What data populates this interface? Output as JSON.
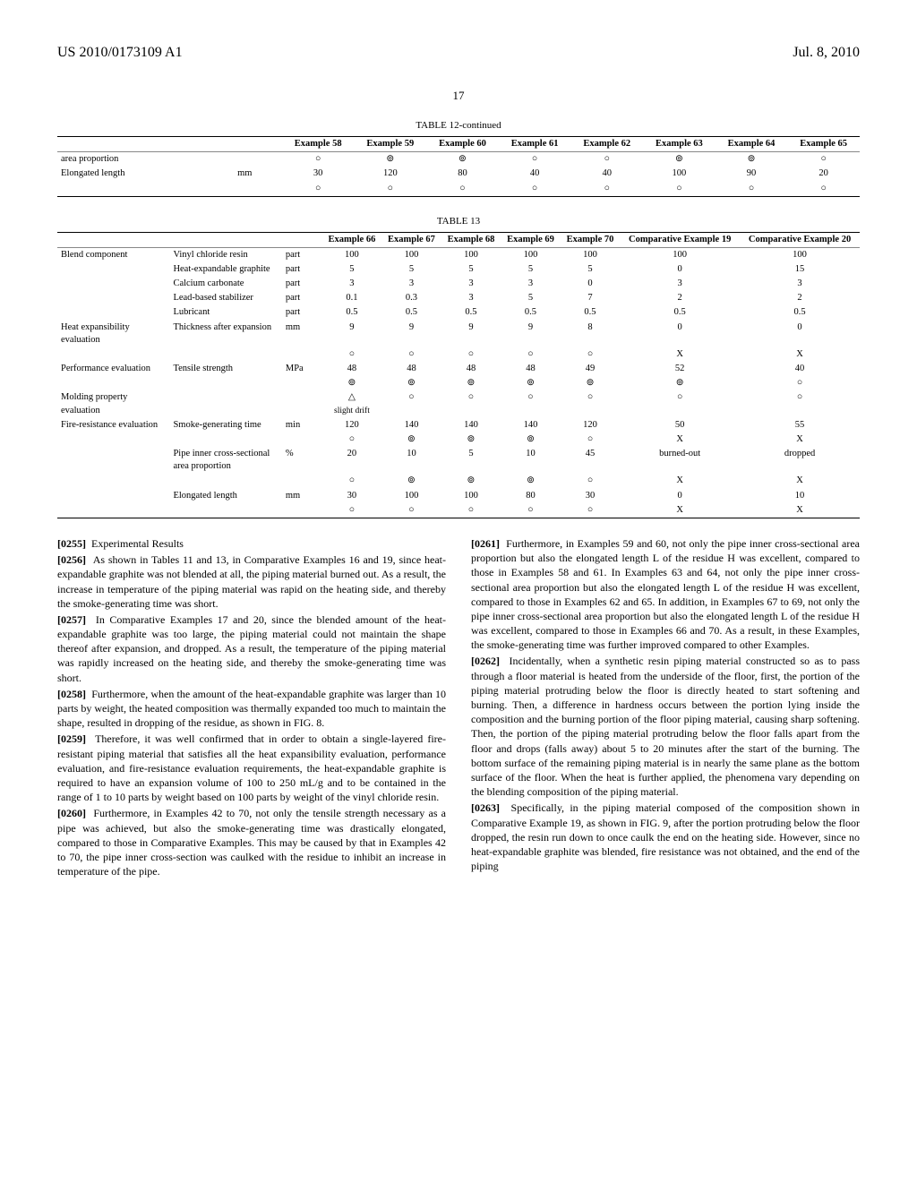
{
  "header": {
    "pub_number": "US 2010/0173109 A1",
    "pub_date": "Jul. 8, 2010",
    "page_number": "17"
  },
  "table12": {
    "title": "TABLE 12-continued",
    "columns": [
      "Example 58",
      "Example 59",
      "Example 60",
      "Example 61",
      "Example 62",
      "Example 63",
      "Example 64",
      "Example 65"
    ],
    "rows": [
      {
        "label": "area proportion",
        "unit": "",
        "cells": [
          "○",
          "⊚",
          "⊚",
          "○",
          "○",
          "⊚",
          "⊚",
          "○"
        ]
      },
      {
        "label": "Elongated length",
        "unit": "mm",
        "cells": [
          "30",
          "120",
          "80",
          "40",
          "40",
          "100",
          "90",
          "20"
        ]
      },
      {
        "label": "",
        "unit": "",
        "cells": [
          "○",
          "○",
          "○",
          "○",
          "○",
          "○",
          "○",
          "○"
        ]
      }
    ]
  },
  "table13": {
    "title": "TABLE 13",
    "columns": [
      "Example 66",
      "Example 67",
      "Example 68",
      "Example 69",
      "Example 70",
      "Comparative Example 19",
      "Comparative Example 20"
    ],
    "rows": [
      {
        "section": "Blend component",
        "label": "Vinyl chloride resin",
        "unit": "part",
        "cells": [
          "100",
          "100",
          "100",
          "100",
          "100",
          "100",
          "100"
        ]
      },
      {
        "section": "",
        "label": "Heat-expandable graphite",
        "unit": "part",
        "cells": [
          "5",
          "5",
          "5",
          "5",
          "5",
          "0",
          "15"
        ]
      },
      {
        "section": "",
        "label": "Calcium carbonate",
        "unit": "part",
        "cells": [
          "3",
          "3",
          "3",
          "3",
          "0",
          "3",
          "3"
        ]
      },
      {
        "section": "",
        "label": "Lead-based stabilizer",
        "unit": "part",
        "cells": [
          "0.1",
          "0.3",
          "3",
          "5",
          "7",
          "2",
          "2"
        ]
      },
      {
        "section": "",
        "label": "Lubricant",
        "unit": "part",
        "cells": [
          "0.5",
          "0.5",
          "0.5",
          "0.5",
          "0.5",
          "0.5",
          "0.5"
        ]
      },
      {
        "section": "Heat expansibility evaluation",
        "label": "Thickness after expansion",
        "unit": "mm",
        "cells": [
          "9",
          "9",
          "9",
          "9",
          "8",
          "0",
          "0"
        ]
      },
      {
        "section": "",
        "label": "",
        "unit": "",
        "cells": [
          "○",
          "○",
          "○",
          "○",
          "○",
          "X",
          "X"
        ]
      },
      {
        "section": "Performance evaluation",
        "label": "Tensile strength",
        "unit": "MPa",
        "cells": [
          "48",
          "48",
          "48",
          "48",
          "49",
          "52",
          "40"
        ]
      },
      {
        "section": "",
        "label": "",
        "unit": "",
        "cells": [
          "⊚",
          "⊚",
          "⊚",
          "⊚",
          "⊚",
          "⊚",
          "○"
        ]
      },
      {
        "section": "Molding property evaluation",
        "label": "",
        "unit": "",
        "cells": [
          "△ slight drift",
          "○",
          "○",
          "○",
          "○",
          "○",
          "○"
        ]
      },
      {
        "section": "Fire-resistance evaluation",
        "label": "Smoke-generating time",
        "unit": "min",
        "cells": [
          "120",
          "140",
          "140",
          "140",
          "120",
          "50",
          "55"
        ]
      },
      {
        "section": "",
        "label": "",
        "unit": "",
        "cells": [
          "○",
          "⊚",
          "⊚",
          "⊚",
          "○",
          "X",
          "X"
        ]
      },
      {
        "section": "",
        "label": "Pipe inner cross-sectional area proportion",
        "unit": "%",
        "cells": [
          "20",
          "10",
          "5",
          "10",
          "45",
          "burned-out",
          "dropped"
        ]
      },
      {
        "section": "",
        "label": "",
        "unit": "",
        "cells": [
          "○",
          "⊚",
          "⊚",
          "⊚",
          "○",
          "X",
          "X"
        ]
      },
      {
        "section": "",
        "label": "Elongated length",
        "unit": "mm",
        "cells": [
          "30",
          "100",
          "100",
          "80",
          "30",
          "0",
          "10"
        ]
      },
      {
        "section": "",
        "label": "",
        "unit": "",
        "cells": [
          "○",
          "○",
          "○",
          "○",
          "○",
          "X",
          "X"
        ]
      }
    ]
  },
  "body": {
    "left": [
      {
        "num": "[0255]",
        "text": "Experimental Results"
      },
      {
        "num": "[0256]",
        "text": "As shown in Tables 11 and 13, in Comparative Examples 16 and 19, since heat-expandable graphite was not blended at all, the piping material burned out. As a result, the increase in temperature of the piping material was rapid on the heating side, and thereby the smoke-generating time was short."
      },
      {
        "num": "[0257]",
        "text": "In Comparative Examples 17 and 20, since the blended amount of the heat-expandable graphite was too large, the piping material could not maintain the shape thereof after expansion, and dropped. As a result, the temperature of the piping material was rapidly increased on the heating side, and thereby the smoke-generating time was short."
      },
      {
        "num": "[0258]",
        "text": "Furthermore, when the amount of the heat-expandable graphite was larger than 10 parts by weight, the heated composition was thermally expanded too much to maintain the shape, resulted in dropping of the residue, as shown in FIG. 8."
      },
      {
        "num": "[0259]",
        "text": "Therefore, it was well confirmed that in order to obtain a single-layered fire-resistant piping material that satisfies all the heat expansibility evaluation, performance evaluation, and fire-resistance evaluation requirements, the heat-expandable graphite is required to have an expansion volume of 100 to 250 mL/g and to be contained in the range of 1 to 10 parts by weight based on 100 parts by weight of the vinyl chloride resin."
      },
      {
        "num": "[0260]",
        "text": "Furthermore, in Examples 42 to 70, not only the tensile strength necessary as a pipe was achieved, but also the smoke-generating time was drastically elongated, compared to those in Comparative Examples. This may be caused by that in Examples 42 to 70, the pipe inner cross-section was caulked with the residue to inhibit an increase in temperature of the pipe."
      }
    ],
    "right": [
      {
        "num": "[0261]",
        "text": "Furthermore, in Examples 59 and 60, not only the pipe inner cross-sectional area proportion but also the elongated length L of the residue H was excellent, compared to those in Examples 58 and 61. In Examples 63 and 64, not only the pipe inner cross-sectional area proportion but also the elongated length L of the residue H was excellent, compared to those in Examples 62 and 65. In addition, in Examples 67 to 69, not only the pipe inner cross-sectional area proportion but also the elongated length L of the residue H was excellent, compared to those in Examples 66 and 70. As a result, in these Examples, the smoke-generating time was further improved compared to other Examples."
      },
      {
        "num": "[0262]",
        "text": "Incidentally, when a synthetic resin piping material constructed so as to pass through a floor material is heated from the underside of the floor, first, the portion of the piping material protruding below the floor is directly heated to start softening and burning. Then, a difference in hardness occurs between the portion lying inside the composition and the burning portion of the floor piping material, causing sharp softening. Then, the portion of the piping material protruding below the floor falls apart from the floor and drops (falls away) about 5 to 20 minutes after the start of the burning. The bottom surface of the remaining piping material is in nearly the same plane as the bottom surface of the floor. When the heat is further applied, the phenomena vary depending on the blending composition of the piping material."
      },
      {
        "num": "[0263]",
        "text": "Specifically, in the piping material composed of the composition shown in Comparative Example 19, as shown in FIG. 9, after the portion protruding below the floor dropped, the resin run down to once caulk the end on the heating side. However, since no heat-expandable graphite was blended, fire resistance was not obtained, and the end of the piping"
      }
    ]
  }
}
